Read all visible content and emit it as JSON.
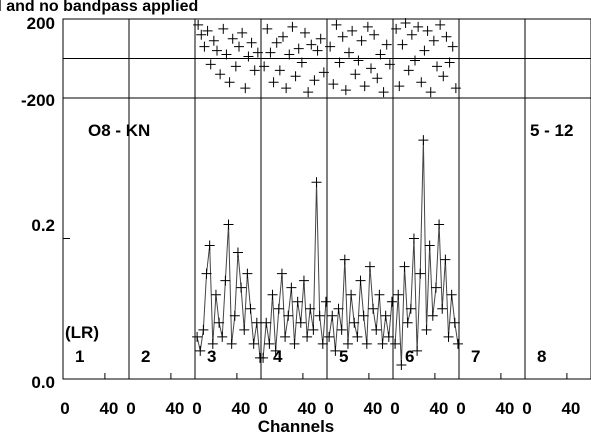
{
  "chart_data": {
    "type": "scatter",
    "title_fragment": "d and no bandpass applied",
    "baseline_label": "O8 - KN",
    "timerange_label": "5 - 12",
    "polarization_label": "(LR)",
    "xlabel": "Channels",
    "phase_axis": {
      "ylim": [
        -200,
        200
      ],
      "tick_labels": [
        "200",
        "-200"
      ]
    },
    "amp_axis": {
      "ylim": [
        0.0,
        0.4
      ],
      "tick_labels": [
        "0.2",
        "0.0"
      ]
    },
    "panels": [
      {
        "index": "1",
        "xlim": [
          0,
          63
        ],
        "x_ticks": [
          "0",
          "40"
        ],
        "has_data": false
      },
      {
        "index": "2",
        "xlim": [
          0,
          63
        ],
        "x_ticks": [
          "0",
          "40"
        ],
        "has_data": false
      },
      {
        "index": "3",
        "xlim": [
          0,
          63
        ],
        "x_ticks": [
          "0",
          "40"
        ],
        "has_data": true
      },
      {
        "index": "4",
        "xlim": [
          0,
          63
        ],
        "x_ticks": [
          "0",
          "40"
        ],
        "has_data": true
      },
      {
        "index": "5",
        "xlim": [
          0,
          63
        ],
        "x_ticks": [
          "0",
          "40"
        ],
        "has_data": true
      },
      {
        "index": "6",
        "xlim": [
          0,
          63
        ],
        "x_ticks": [
          "0",
          "40"
        ],
        "has_data": true
      },
      {
        "index": "7",
        "xlim": [
          0,
          63
        ],
        "x_ticks": [
          "0",
          "40"
        ],
        "has_data": false
      },
      {
        "index": "8",
        "xlim": [
          0,
          63
        ],
        "x_ticks": [
          "0",
          "40"
        ],
        "has_data": false
      }
    ],
    "series": [
      {
        "panel": "3",
        "amp_x": [
          2,
          5,
          8,
          11,
          14,
          17,
          20,
          23,
          26,
          29,
          32,
          35,
          38,
          41,
          44,
          47,
          50,
          53,
          56,
          59,
          62
        ],
        "amp_y": [
          0.06,
          0.04,
          0.07,
          0.15,
          0.19,
          0.05,
          0.12,
          0.08,
          0.06,
          0.14,
          0.22,
          0.05,
          0.09,
          0.18,
          0.13,
          0.07,
          0.15,
          0.1,
          0.05,
          0.08,
          0.03
        ],
        "phase_x": [
          3,
          6,
          9,
          12,
          15,
          18,
          21,
          24,
          27,
          30,
          33,
          36,
          39,
          42,
          45,
          48,
          51,
          54,
          57,
          60
        ],
        "phase_y": [
          170,
          120,
          60,
          140,
          -30,
          90,
          40,
          -80,
          150,
          20,
          -120,
          100,
          -40,
          60,
          130,
          -150,
          10,
          80,
          -60,
          30
        ]
      },
      {
        "panel": "4",
        "amp_x": [
          2,
          5,
          8,
          11,
          14,
          17,
          20,
          23,
          26,
          29,
          32,
          35,
          38,
          41,
          44,
          47,
          50,
          53,
          56,
          59,
          62
        ],
        "amp_y": [
          0.03,
          0.08,
          0.05,
          0.12,
          0.04,
          0.1,
          0.15,
          0.06,
          0.09,
          0.13,
          0.05,
          0.11,
          0.08,
          0.14,
          0.06,
          0.1,
          0.07,
          0.28,
          0.09,
          0.05,
          0.11
        ],
        "phase_x": [
          3,
          6,
          9,
          12,
          15,
          18,
          21,
          24,
          27,
          30,
          33,
          36,
          39,
          42,
          45,
          48,
          51,
          54,
          57,
          60
        ],
        "phase_y": [
          -40,
          150,
          30,
          -120,
          80,
          -60,
          110,
          -150,
          20,
          160,
          -90,
          50,
          -20,
          130,
          -170,
          70,
          -110,
          40,
          100,
          -70
        ]
      },
      {
        "panel": "5",
        "amp_x": [
          2,
          5,
          8,
          11,
          14,
          17,
          20,
          23,
          26,
          29,
          32,
          35,
          38,
          41,
          44,
          47,
          50,
          53,
          56,
          59,
          62
        ],
        "amp_y": [
          0.06,
          0.09,
          0.04,
          0.1,
          0.07,
          0.17,
          0.05,
          0.12,
          0.08,
          0.06,
          0.14,
          0.09,
          0.05,
          0.16,
          0.1,
          0.07,
          0.12,
          0.05,
          0.09,
          0.06,
          0.11
        ],
        "phase_x": [
          3,
          6,
          9,
          12,
          15,
          18,
          21,
          24,
          27,
          30,
          33,
          36,
          39,
          42,
          45,
          48,
          51,
          54,
          57,
          60
        ],
        "phase_y": [
          60,
          -130,
          170,
          -20,
          110,
          -160,
          30,
          140,
          -80,
          -10,
          90,
          -140,
          160,
          -50,
          120,
          -100,
          20,
          -170,
          70,
          -30
        ]
      },
      {
        "panel": "6",
        "amp_x": [
          2,
          5,
          8,
          11,
          14,
          17,
          20,
          23,
          26,
          29,
          32,
          35,
          38,
          41,
          44,
          47,
          50,
          53,
          56,
          59,
          62
        ],
        "amp_y": [
          0.05,
          0.12,
          0.02,
          0.16,
          0.08,
          0.1,
          0.2,
          0.04,
          0.15,
          0.34,
          0.07,
          0.19,
          0.09,
          0.13,
          0.22,
          0.1,
          0.17,
          0.06,
          0.12,
          0.08,
          0.05
        ],
        "phase_x": [
          3,
          6,
          9,
          12,
          15,
          18,
          21,
          24,
          27,
          30,
          33,
          36,
          39,
          42,
          45,
          48,
          51,
          54,
          57,
          60
        ],
        "phase_y": [
          150,
          -140,
          70,
          180,
          -60,
          120,
          -10,
          160,
          -120,
          40,
          140,
          -170,
          90,
          -40,
          170,
          -90,
          110,
          -20,
          60,
          -150
        ]
      }
    ]
  }
}
